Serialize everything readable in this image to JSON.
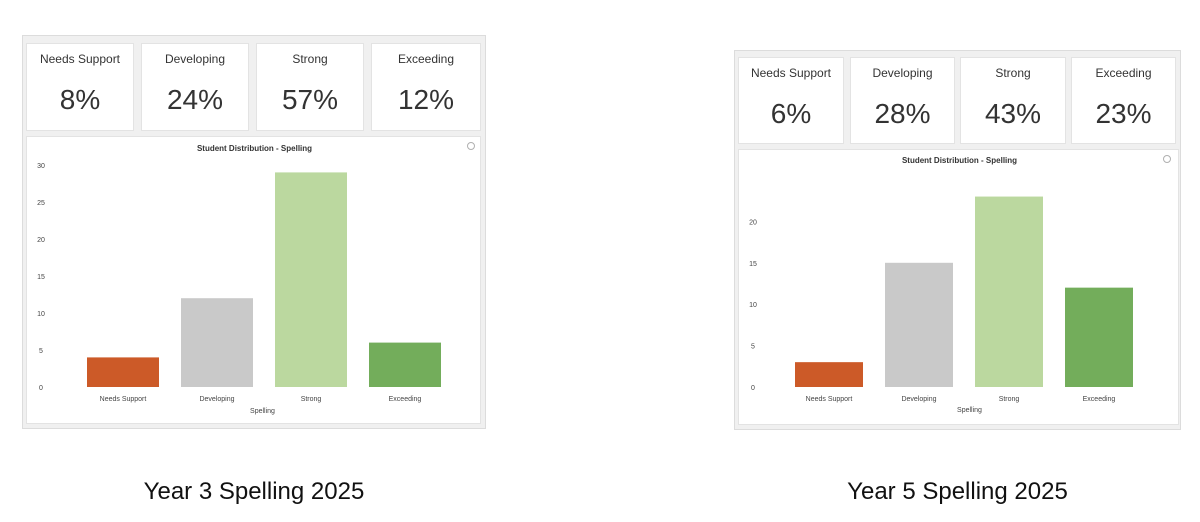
{
  "panels": [
    {
      "stats": [
        {
          "label": "Needs Support",
          "value": "8%"
        },
        {
          "label": "Developing",
          "value": "24%"
        },
        {
          "label": "Strong",
          "value": "57%"
        },
        {
          "label": "Exceeding",
          "value": "12%"
        }
      ],
      "caption": "Year 3 Spelling 2025"
    },
    {
      "stats": [
        {
          "label": "Needs Support",
          "value": "6%"
        },
        {
          "label": "Developing",
          "value": "28%"
        },
        {
          "label": "Strong",
          "value": "43%"
        },
        {
          "label": "Exceeding",
          "value": "23%"
        }
      ],
      "caption": "Year 5 Spelling 2025"
    }
  ],
  "colors": {
    "needs_support": "#cc5a28",
    "developing": "#c9c9c9",
    "strong": "#bbd89f",
    "exceeding": "#73ad5b"
  },
  "chart_data": [
    {
      "type": "bar",
      "title": "Student Distribution - Spelling",
      "xlabel": "Spelling",
      "ylabel": "",
      "categories": [
        "Needs Support",
        "Developing",
        "Strong",
        "Exceeding"
      ],
      "values": [
        4,
        12,
        29,
        6
      ],
      "ylim": [
        0,
        30
      ],
      "yticks": [
        0,
        5,
        10,
        15,
        20,
        25,
        30
      ],
      "grid": false,
      "bar_colors": [
        "#cc5a28",
        "#c9c9c9",
        "#bbd89f",
        "#73ad5b"
      ]
    },
    {
      "type": "bar",
      "title": "Student Distribution - Spelling",
      "xlabel": "Spelling",
      "ylabel": "",
      "categories": [
        "Needs Support",
        "Developing",
        "Strong",
        "Exceeding"
      ],
      "values": [
        3,
        15,
        23,
        12
      ],
      "ylim": [
        0,
        25
      ],
      "yticks": [
        0,
        5,
        10,
        15,
        20
      ],
      "grid": false,
      "bar_colors": [
        "#cc5a28",
        "#c9c9c9",
        "#bbd89f",
        "#73ad5b"
      ]
    }
  ]
}
